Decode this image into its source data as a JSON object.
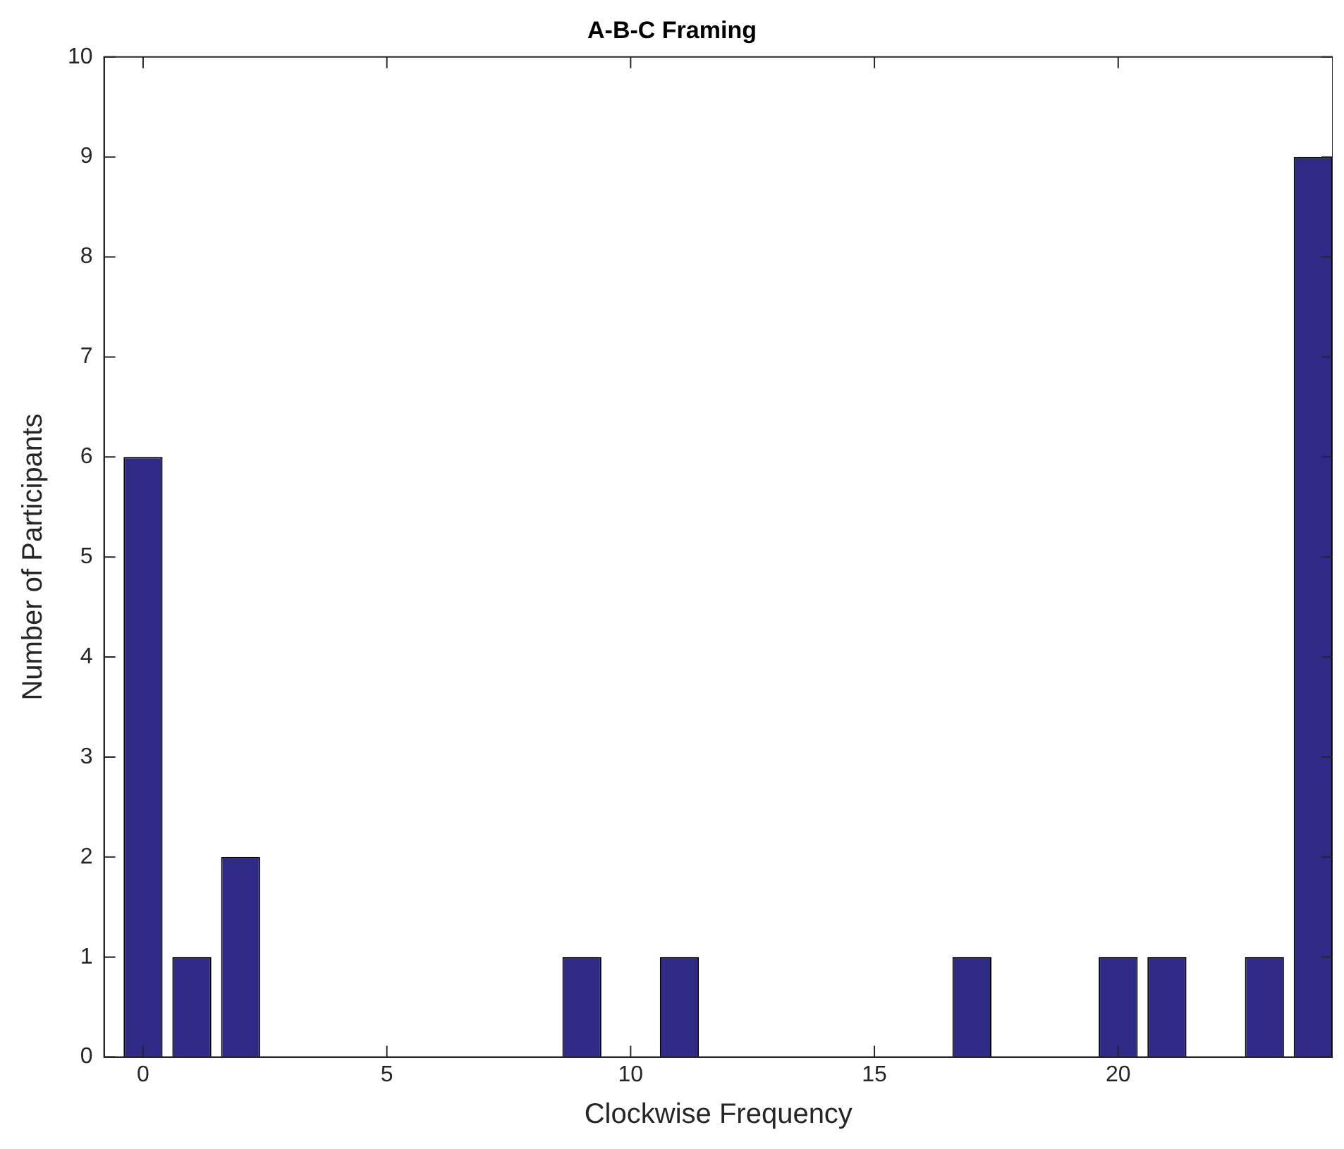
{
  "chart_data": {
    "type": "bar",
    "title": "A-B-C Framing",
    "xlabel": "Clockwise Frequency",
    "ylabel": "Number of Participants",
    "x": [
      0,
      1,
      2,
      3,
      4,
      5,
      6,
      7,
      8,
      9,
      10,
      11,
      12,
      13,
      14,
      15,
      16,
      17,
      18,
      19,
      20,
      21,
      22,
      23,
      24
    ],
    "values": [
      6,
      1,
      2,
      0,
      0,
      0,
      0,
      0,
      0,
      1,
      0,
      1,
      0,
      0,
      0,
      0,
      0,
      1,
      0,
      0,
      1,
      1,
      0,
      1,
      9
    ],
    "color": "#2e2a85",
    "xlim": [
      -0.8,
      24.4
    ],
    "xticks": [
      0,
      5,
      10,
      15,
      20
    ],
    "ylim": [
      0,
      10
    ],
    "yticks": [
      0,
      1,
      2,
      3,
      4,
      5,
      6,
      7,
      8,
      9,
      10
    ],
    "grid": false,
    "legend": false
  }
}
